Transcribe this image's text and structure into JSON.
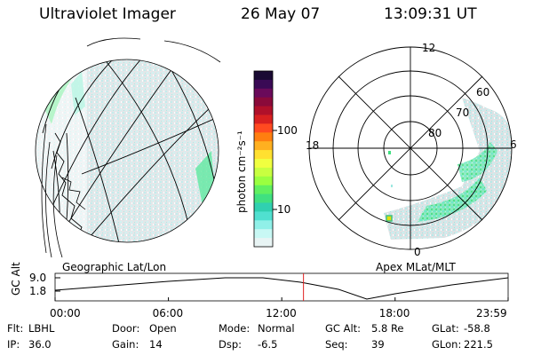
{
  "header": {
    "title": "Ultraviolet Imager",
    "date": "26 May 07",
    "time": "13:09:31 UT"
  },
  "colorbar": {
    "unit_label": "photon cm⁻²s⁻¹",
    "ticks": [
      "100",
      "10"
    ],
    "colors": [
      "#1a0a33",
      "#3a0a55",
      "#6a0a5a",
      "#8a0a3a",
      "#b0102a",
      "#d82020",
      "#ff4a20",
      "#ff7e10",
      "#ffb020",
      "#ffe030",
      "#f0ff40",
      "#c8ff40",
      "#9aff40",
      "#60f060",
      "#40e080",
      "#30d0b0",
      "#50e0d0",
      "#90f0e8",
      "#c8f8f4",
      "#e8f4f4"
    ]
  },
  "left_panel": {
    "label": "Geographic Lat/Lon"
  },
  "right_panel": {
    "label": "Apex MLat/MLT",
    "mlt_labels": [
      "12",
      "18",
      "6",
      "0"
    ],
    "mlat_labels": [
      "60",
      "70",
      "80"
    ]
  },
  "timeline": {
    "y_label": "GC Alt",
    "y_ticks": [
      "9.0",
      "1.8"
    ],
    "x_ticks": [
      "00:00",
      "06:00",
      "12:00",
      "18:00",
      "23:59"
    ],
    "marker_time": "13:09",
    "colors": {
      "curve": "#000000",
      "marker": "#e02020"
    }
  },
  "footer": {
    "rows": [
      [
        {
          "label": "Flt:",
          "value": "LBHL"
        },
        {
          "label": "Door:",
          "value": "Open"
        },
        {
          "label": "Mode:",
          "value": "Normal"
        },
        {
          "label": "GC Alt:",
          "value": "5.8 Re"
        },
        {
          "label": "GLat:",
          "value": "-58.8"
        }
      ],
      [
        {
          "label": "IP:",
          "value": "36.0"
        },
        {
          "label": "Gain:",
          "value": "14"
        },
        {
          "label": "Dsp:",
          "value": "-6.5"
        },
        {
          "label": "Seq:",
          "value": "39"
        },
        {
          "label": "GLon:",
          "value": "221.5"
        }
      ]
    ]
  }
}
